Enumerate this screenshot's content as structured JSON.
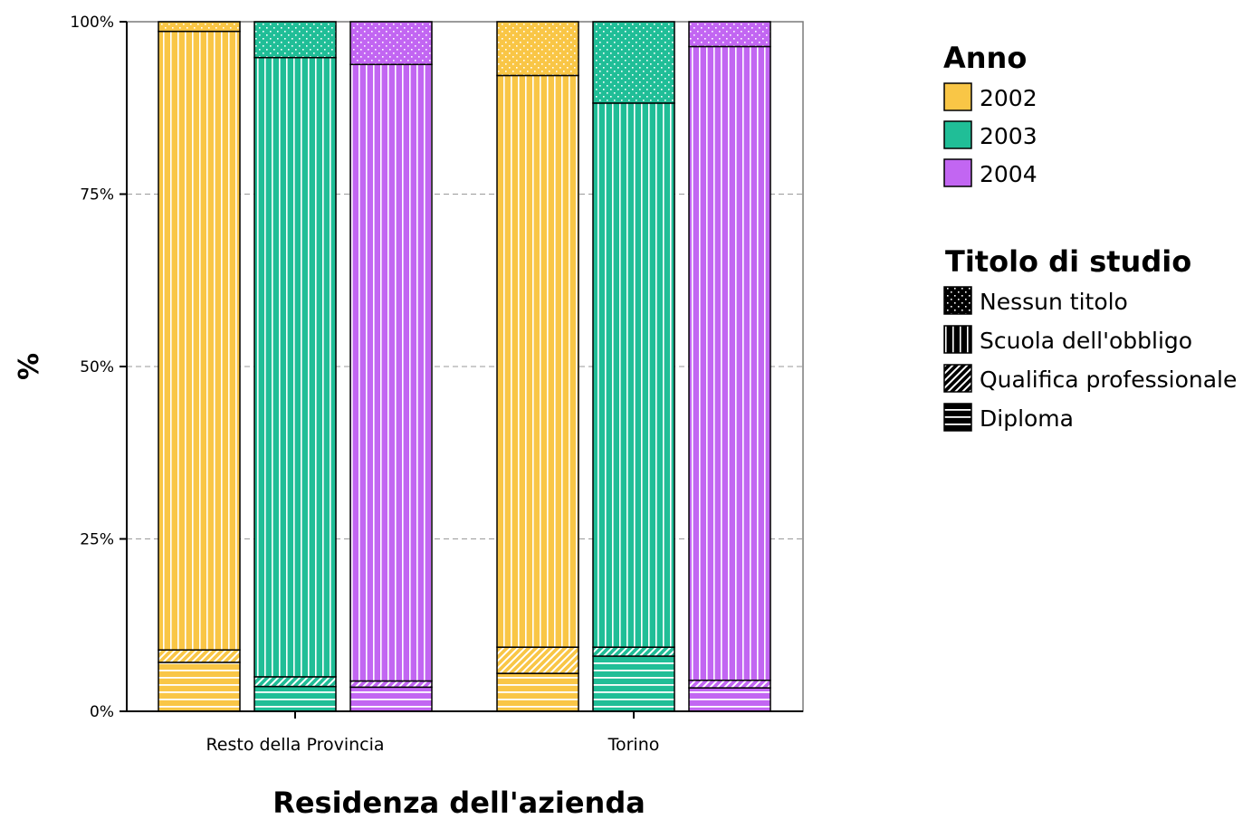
{
  "chart_data": {
    "type": "bar",
    "stacked": true,
    "xlabel": "Residenza dell'azienda",
    "ylabel": "%",
    "ylim": [
      0,
      100
    ],
    "yticks": [
      "0%",
      "25%",
      "50%",
      "75%",
      "100%"
    ],
    "grid": "horizontal dashed",
    "legend_position": "right",
    "categories": [
      "Resto della Provincia",
      "Torino"
    ],
    "color_legend": {
      "title": "Anno",
      "entries": [
        {
          "label": "2002",
          "color": "#F9C646"
        },
        {
          "label": "2003",
          "color": "#20BE97"
        },
        {
          "label": "2004",
          "color": "#C266F2"
        }
      ]
    },
    "pattern_legend": {
      "title": "Titolo di studio",
      "entries": [
        {
          "label": "Nessun titolo",
          "pattern": "dots"
        },
        {
          "label": "Scuola dell'obbligo",
          "pattern": "vertical"
        },
        {
          "label": "Qualifica professionale",
          "pattern": "diagonal"
        },
        {
          "label": "Diploma",
          "pattern": "horizontal"
        }
      ]
    },
    "series_order": [
      "Diploma",
      "Qualifica professionale",
      "Scuola dell'obbligo",
      "Nessun titolo"
    ],
    "bars": [
      {
        "category": "Resto della Provincia",
        "anno": "2002",
        "values": {
          "Diploma": 7.1,
          "Qualifica professionale": 1.8,
          "Scuola dell'obbligo": 89.7,
          "Nessun titolo": 1.4
        }
      },
      {
        "category": "Resto della Provincia",
        "anno": "2003",
        "values": {
          "Diploma": 3.6,
          "Qualifica professionale": 1.4,
          "Scuola dell'obbligo": 89.8,
          "Nessun titolo": 5.2
        }
      },
      {
        "category": "Resto della Provincia",
        "anno": "2004",
        "values": {
          "Diploma": 3.5,
          "Qualifica professionale": 0.9,
          "Scuola dell'obbligo": 89.4,
          "Nessun titolo": 6.2
        }
      },
      {
        "category": "Torino",
        "anno": "2002",
        "values": {
          "Diploma": 5.5,
          "Qualifica professionale": 3.8,
          "Scuola dell'obbligo": 82.9,
          "Nessun titolo": 7.8
        }
      },
      {
        "category": "Torino",
        "anno": "2003",
        "values": {
          "Diploma": 8.0,
          "Qualifica professionale": 1.3,
          "Scuola dell'obbligo": 78.9,
          "Nessun titolo": 11.8
        }
      },
      {
        "category": "Torino",
        "anno": "2004",
        "values": {
          "Diploma": 3.4,
          "Qualifica professionale": 1.1,
          "Scuola dell'obbligo": 91.9,
          "Nessun titolo": 3.6
        }
      }
    ]
  }
}
